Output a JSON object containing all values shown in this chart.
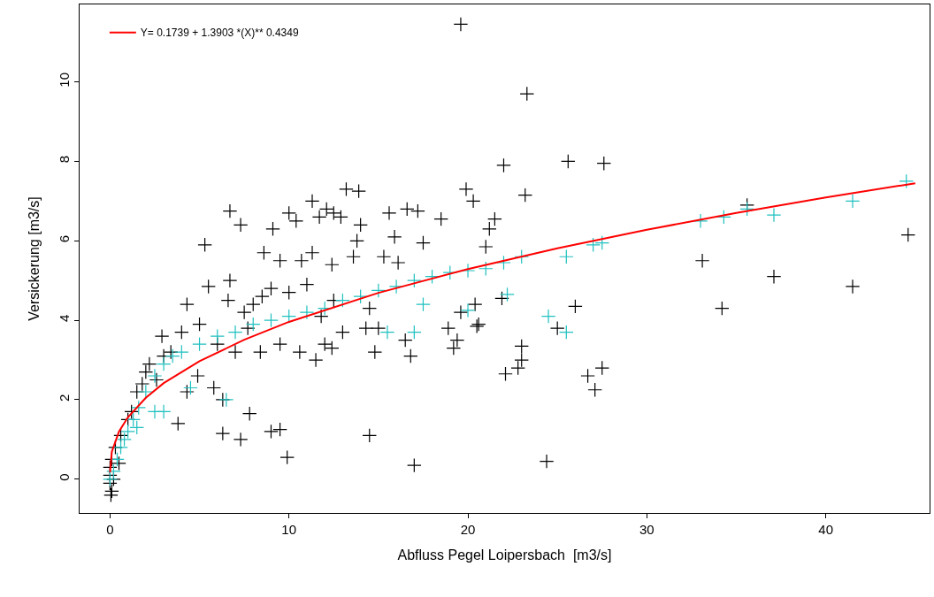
{
  "chart_data": {
    "type": "scatter",
    "xlabel": "Abfluss Pegel Loipersbach  [m3/s]",
    "ylabel": "Versickerung [m3/s]",
    "xlim": [
      -1.7,
      45.8
    ],
    "xticks": [
      0,
      10,
      20,
      30,
      40
    ],
    "ylim": [
      -0.85,
      11.95
    ],
    "yticks": [
      0,
      2,
      4,
      6,
      8,
      10
    ],
    "legend": "top left",
    "marker": "cross",
    "series": [
      {
        "color": "#000000",
        "x": [
          19.6,
          23.3,
          22,
          25.6,
          27.6,
          23.2,
          19.9,
          20.3,
          21.9,
          33.1,
          34.2,
          35.6,
          37.1,
          41.5,
          44.6,
          24.4,
          17.0,
          14.5,
          9.9,
          9.0,
          9.5,
          7.3,
          6.3,
          7.8,
          25,
          26,
          26.7,
          27.1,
          27.5,
          23,
          23,
          22.1,
          22.8,
          19.2,
          19.6,
          20.5,
          21,
          21.2,
          21.5,
          18.5,
          17.2,
          16.6,
          17.5,
          16.1,
          15.3,
          15.6,
          14,
          15.9,
          13.2,
          13.9,
          11.3,
          11.7,
          12.1,
          12.5,
          12.9,
          10.4,
          10,
          9.1,
          6.7,
          7.3,
          5.3,
          8.6,
          10.7,
          11.3,
          12.4,
          13.6,
          14.5,
          13.8,
          9.5,
          5.5,
          4.3,
          6.7,
          6.6,
          8.5,
          9,
          10,
          11,
          12.5,
          11.8,
          13,
          12,
          14.3,
          15,
          9.5,
          8.4,
          10.6,
          11.5,
          12.4,
          14.8,
          16.5,
          16.8,
          18.9,
          19.4,
          20.4,
          20.6,
          4,
          2.9,
          3.4,
          2.2,
          1.5,
          2.6,
          2.0,
          4.3,
          3.8,
          4.9,
          5.8,
          6.3,
          7.0,
          6.0,
          1.0,
          0.6,
          0.3,
          0.1,
          0.0,
          0.0,
          0.0,
          0.1,
          0.05,
          0.2,
          0.5,
          1.2,
          1.8,
          3.0,
          5,
          7.5,
          8,
          7.7
        ],
        "values": [
          11.45,
          9.7,
          7.9,
          8.0,
          7.95,
          7.15,
          7.3,
          7.0,
          4.55,
          5.5,
          4.3,
          6.9,
          5.1,
          4.85,
          6.15,
          0.45,
          0.35,
          1.1,
          0.55,
          1.2,
          1.25,
          1.0,
          1.15,
          1.65,
          3.8,
          4.35,
          2.6,
          2.25,
          2.8,
          3.0,
          3.35,
          2.65,
          2.8,
          3.3,
          4.2,
          3.85,
          5.85,
          6.3,
          6.55,
          6.55,
          6.75,
          6.8,
          5.95,
          5.45,
          5.6,
          6.7,
          6.4,
          6.1,
          7.3,
          7.25,
          7.0,
          6.6,
          6.8,
          6.7,
          6.6,
          6.5,
          6.7,
          6.3,
          6.75,
          6.4,
          5.9,
          5.7,
          5.5,
          5.7,
          5.4,
          5.6,
          4.3,
          6.0,
          5.5,
          4.85,
          4.4,
          5.0,
          4.5,
          4.6,
          4.8,
          4.7,
          4.9,
          4.5,
          4.1,
          3.7,
          3.4,
          3.8,
          3.8,
          3.4,
          3.2,
          3.2,
          3.0,
          3.3,
          3.2,
          3.5,
          3.1,
          3.8,
          3.5,
          4.4,
          3.9,
          3.7,
          3.6,
          3.2,
          2.9,
          2.2,
          2.5,
          2.7,
          2.2,
          1.4,
          2.6,
          2.3,
          2.0,
          3.2,
          3.4,
          1.5,
          1.1,
          0.8,
          0.5,
          0.3,
          0.1,
          -0.1,
          -0.3,
          -0.4,
          0.0,
          0.4,
          1.7,
          2.4,
          3.1,
          3.9,
          4.2,
          4.4,
          3.8
        ]
      },
      {
        "color": "#20c0c0",
        "x": [
          0,
          0.2,
          0.4,
          0.6,
          0.8,
          1,
          1.3,
          1.6,
          2,
          2.5,
          3,
          3.5,
          4,
          5,
          6,
          7,
          8,
          9,
          10,
          11,
          12,
          13,
          14,
          15,
          16,
          17,
          18,
          19,
          20,
          21,
          22,
          23,
          25.5,
          27,
          27.5,
          33,
          34.3,
          35.6,
          37.1,
          41.5,
          44.5,
          3,
          4.5,
          6.5,
          15.5,
          17,
          17.5,
          20,
          22.2,
          24.5,
          25.5,
          2.5,
          1.5
        ],
        "values": [
          0,
          0.2,
          0.5,
          0.8,
          1.0,
          1.2,
          1.5,
          1.8,
          2.2,
          2.6,
          2.9,
          3.1,
          3.2,
          3.4,
          3.6,
          3.7,
          3.9,
          4.0,
          4.1,
          4.2,
          4.3,
          4.5,
          4.6,
          4.75,
          4.85,
          5.0,
          5.1,
          5.2,
          5.25,
          5.3,
          5.45,
          5.6,
          5.6,
          5.9,
          5.95,
          6.5,
          6.6,
          6.8,
          6.65,
          7.0,
          7.5,
          1.7,
          2.3,
          2.0,
          3.7,
          3.7,
          4.4,
          4.25,
          4.65,
          4.1,
          3.7,
          1.7,
          1.3
        ]
      },
      {
        "type": "line",
        "name": "Y= 0.1739 + 1.3903 *(X)** 0.4349",
        "color": "#ff0000",
        "marker": "none",
        "x": [
          0,
          0.1,
          0.5,
          1,
          2,
          3,
          5,
          7.5,
          10,
          15,
          20,
          25,
          30,
          35,
          40,
          45
        ],
        "values": [
          0.17,
          0.69,
          1.2,
          1.56,
          2.05,
          2.42,
          2.97,
          3.51,
          3.96,
          4.69,
          5.29,
          5.81,
          6.28,
          6.7,
          7.09,
          7.45
        ]
      }
    ]
  }
}
